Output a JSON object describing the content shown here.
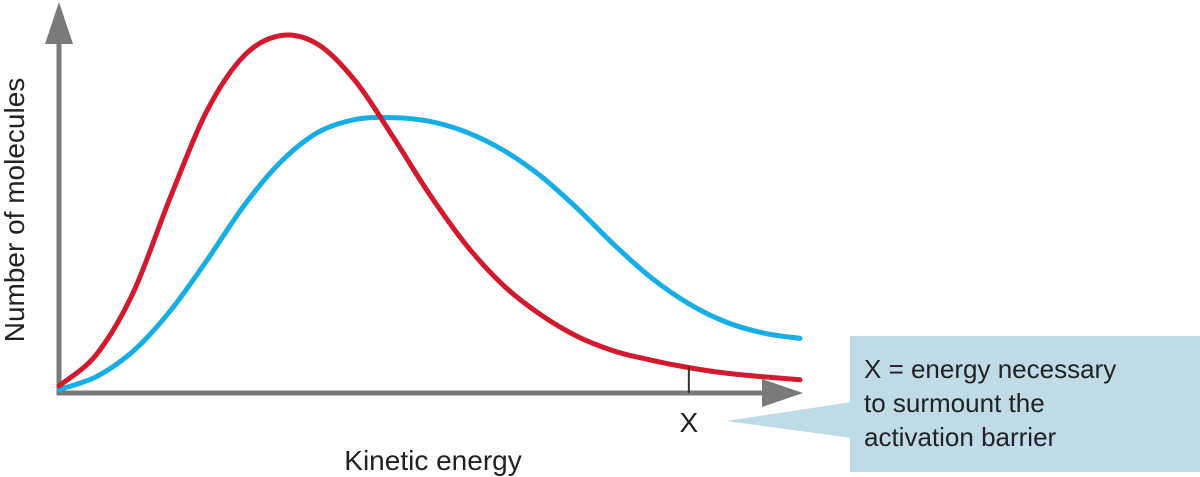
{
  "chart_data": {
    "type": "line",
    "title": "",
    "xlabel": "Kinetic energy",
    "ylabel": "Number of molecules",
    "xlim": [
      0,
      10
    ],
    "ylim": [
      0,
      10
    ],
    "grid": false,
    "legend": "none",
    "x_markers": [
      {
        "label": "X",
        "x": 8.5
      }
    ],
    "series": [
      {
        "color": "#d2192e",
        "x": [
          0,
          0.5,
          1,
          1.5,
          2,
          2.5,
          3,
          3.5,
          4,
          4.5,
          5,
          5.5,
          6,
          6.5,
          7,
          7.5,
          8,
          8.5,
          9,
          9.5,
          10
        ],
        "y": [
          0.25,
          1.1,
          2.8,
          5.4,
          7.8,
          9.3,
          9.85,
          9.6,
          8.6,
          7.1,
          5.5,
          4.1,
          3.0,
          2.2,
          1.6,
          1.2,
          0.95,
          0.75,
          0.6,
          0.5,
          0.42
        ]
      },
      {
        "color": "#17aee6",
        "x": [
          0,
          0.5,
          1,
          1.5,
          2,
          2.5,
          3,
          3.5,
          4,
          4.5,
          5,
          5.5,
          6,
          6.5,
          7,
          7.5,
          8,
          8.5,
          9,
          9.5,
          10
        ],
        "y": [
          0.15,
          0.5,
          1.2,
          2.3,
          3.7,
          5.2,
          6.4,
          7.2,
          7.55,
          7.6,
          7.5,
          7.2,
          6.7,
          6.0,
          5.1,
          4.1,
          3.2,
          2.5,
          2.0,
          1.7,
          1.55
        ]
      }
    ],
    "annotation": {
      "lines": [
        "X = energy necessary",
        "to surmount the",
        "activation barrier"
      ],
      "background": "#bedbe6",
      "pointer_color": "#bedbe6"
    },
    "axis_color": "#7a7a7a"
  }
}
